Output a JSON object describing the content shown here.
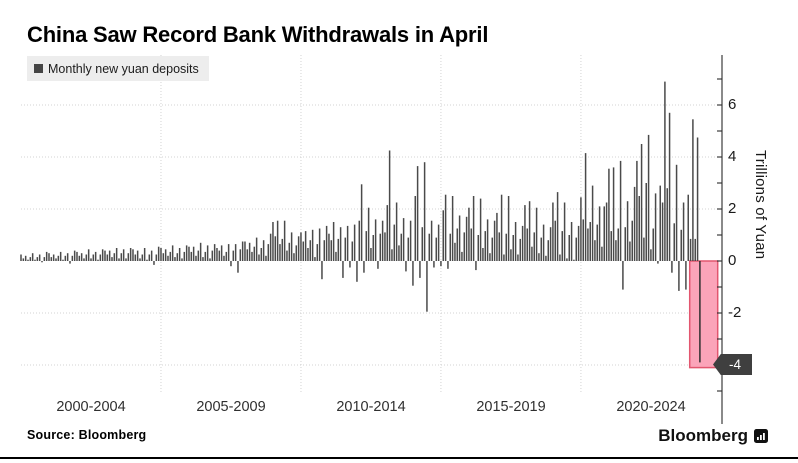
{
  "header": {
    "title": "China Saw Record Bank Withdrawals in April"
  },
  "legend": {
    "label": "Monthly new yuan deposits",
    "marker_color": "#454545"
  },
  "footer": {
    "source": "Source: Bloomberg",
    "brand": "Bloomberg"
  },
  "chart_data": {
    "type": "bar",
    "title": "China Saw Record Bank Withdrawals in April",
    "series_name": "Monthly new yuan deposits",
    "unit": "trillions of yuan",
    "ylabel": "Trillions of Yuan",
    "frequency": "monthly",
    "x_start": "2000-01",
    "x_end": "2024-04",
    "x_group_labels": [
      "2000-2004",
      "2005-2009",
      "2010-2014",
      "2015-2019",
      "2020-2024"
    ],
    "y_tick_labels": [
      "6",
      "4",
      "2",
      "0",
      "-2"
    ],
    "badge_label": "-4",
    "ylim": [
      -5,
      7.9
    ],
    "grid_values": [
      6,
      4,
      2,
      -2,
      -4
    ],
    "grid_on": true,
    "legend_position": "top-left",
    "bar_color": "#4a4a4a",
    "highlight": {
      "period": "2024-04",
      "value": -3.9,
      "label": "-4",
      "fill": "#fba4b9",
      "border": "#e2566f",
      "bar_color": "#2f2f2f",
      "band_bottom": -4.1
    },
    "values": [
      0.25,
      0.1,
      0.2,
      0.05,
      0.15,
      0.3,
      0.05,
      0.15,
      0.25,
      -0.05,
      0.15,
      0.35,
      0.3,
      0.15,
      0.25,
      0.1,
      0.2,
      0.35,
      0.05,
      0.2,
      0.3,
      -0.1,
      0.2,
      0.4,
      0.35,
      0.2,
      0.3,
      0.1,
      0.25,
      0.45,
      0.1,
      0.25,
      0.35,
      0.05,
      0.25,
      0.45,
      0.4,
      0.25,
      0.4,
      0.15,
      0.3,
      0.5,
      0.1,
      0.3,
      0.45,
      0.1,
      0.3,
      0.5,
      0.45,
      0.25,
      0.4,
      0.1,
      0.25,
      0.5,
      0.05,
      0.25,
      0.4,
      -0.15,
      0.25,
      0.55,
      0.5,
      0.3,
      0.45,
      0.2,
      0.35,
      0.6,
      0.15,
      0.3,
      0.5,
      0.1,
      0.35,
      0.6,
      0.55,
      0.35,
      0.55,
      0.2,
      0.4,
      0.7,
      0.15,
      0.35,
      0.6,
      0.1,
      0.4,
      0.65,
      0.5,
      0.4,
      0.6,
      0.2,
      0.35,
      0.65,
      -0.2,
      0.4,
      0.65,
      -0.45,
      0.45,
      0.75,
      0.75,
      0.45,
      0.7,
      0.35,
      0.55,
      0.9,
      0.25,
      0.5,
      0.8,
      0.2,
      0.65,
      1.05,
      1.5,
      0.95,
      1.55,
      0.65,
      0.85,
      1.55,
      0.4,
      0.7,
      1.1,
      0.3,
      0.6,
      0.95,
      1.1,
      0.75,
      1.15,
      0.5,
      0.8,
      1.2,
      0.15,
      0.65,
      1.25,
      -0.7,
      0.8,
      1.35,
      1.05,
      0.8,
      1.5,
      0.35,
      0.85,
      1.3,
      -0.65,
      0.9,
      1.35,
      -0.25,
      0.75,
      1.4,
      -0.8,
      1.55,
      2.95,
      -0.45,
      1.15,
      2.05,
      0.5,
      1.0,
      1.6,
      -0.3,
      1.05,
      1.55,
      1.1,
      2.15,
      4.25,
      0.45,
      1.4,
      2.25,
      0.6,
      1.05,
      1.65,
      -0.4,
      0.9,
      1.55,
      -0.95,
      2.5,
      3.65,
      -0.65,
      1.3,
      3.8,
      -1.95,
      1.05,
      1.55,
      -0.25,
      0.9,
      1.4,
      -0.2,
      1.95,
      2.55,
      -0.3,
      1.05,
      2.5,
      0.7,
      1.25,
      1.75,
      0.35,
      1.1,
      1.7,
      2.05,
      1.25,
      2.5,
      -0.35,
      1.0,
      2.4,
      0.5,
      1.15,
      1.6,
      0.3,
      0.9,
      1.55,
      1.85,
      1.1,
      2.55,
      0.25,
      1.05,
      2.5,
      0.45,
      1.0,
      1.5,
      0.25,
      0.85,
      1.35,
      2.15,
      1.25,
      2.3,
      0.55,
      1.1,
      2.05,
      0.3,
      0.9,
      1.4,
      0.2,
      0.8,
      1.3,
      2.25,
      1.55,
      2.65,
      0.25,
      1.15,
      2.25,
      0.1,
      1.0,
      1.5,
      0.05,
      0.9,
      1.35,
      2.45,
      1.6,
      4.15,
      1.25,
      1.5,
      2.9,
      0.8,
      1.4,
      2.1,
      0.55,
      2.1,
      2.25,
      3.55,
      1.15,
      3.6,
      0.8,
      1.25,
      3.85,
      -1.1,
      1.3,
      2.3,
      0.75,
      1.55,
      2.85,
      3.85,
      2.5,
      4.5,
      0.9,
      3.0,
      4.85,
      0.45,
      1.25,
      2.6,
      -0.1,
      2.9,
      2.25,
      6.9,
      2.8,
      5.7,
      -0.45,
      1.45,
      3.7,
      -1.15,
      1.2,
      2.25,
      -1.1,
      2.55,
      0.85,
      5.45,
      0.85,
      4.75,
      -3.9
    ]
  }
}
